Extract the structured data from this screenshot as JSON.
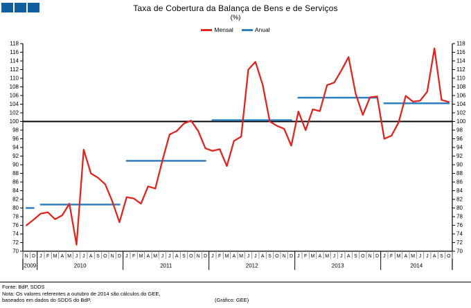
{
  "header": {
    "title": "Taxa de Cobertura da Balança de Bens e de Serviços",
    "subtitle": "(%)"
  },
  "decor": {
    "squares_count": 3,
    "squares_color": "#125F9F"
  },
  "legend": [
    {
      "label": "Mensal",
      "color": "#E02420"
    },
    {
      "label": "Anual",
      "color": "#2E7EBE"
    }
  ],
  "chart_data": {
    "type": "line",
    "title": "Taxa de Cobertura da Balança de Bens e de Serviços (%)",
    "xlabel": "",
    "ylabel": "%",
    "ylim": [
      70,
      118
    ],
    "grid": false,
    "legend_position": "top-center",
    "reference_line": 100,
    "yticks": [
      70,
      72,
      74,
      76,
      78,
      80,
      82,
      84,
      86,
      88,
      90,
      92,
      94,
      96,
      98,
      100,
      102,
      104,
      106,
      108,
      110,
      112,
      114,
      116,
      118
    ],
    "x_months": [
      "N",
      "D",
      "J",
      "F",
      "M",
      "A",
      "M",
      "J",
      "J",
      "A",
      "S",
      "O",
      "N",
      "D",
      "J",
      "F",
      "M",
      "A",
      "M",
      "J",
      "J",
      "A",
      "S",
      "O",
      "N",
      "D",
      "J",
      "F",
      "M",
      "A",
      "M",
      "J",
      "J",
      "A",
      "S",
      "O",
      "N",
      "D",
      "J",
      "F",
      "M",
      "A",
      "M",
      "J",
      "J",
      "A",
      "S",
      "O",
      "N",
      "D",
      "J",
      "F",
      "M",
      "A",
      "M",
      "J",
      "J",
      "A",
      "S",
      "O"
    ],
    "years": [
      {
        "label": "2009",
        "months": 2
      },
      {
        "label": "2010",
        "months": 12
      },
      {
        "label": "2011",
        "months": 12
      },
      {
        "label": "2012",
        "months": 12
      },
      {
        "label": "2013",
        "months": 12
      },
      {
        "label": "2014",
        "months": 10
      }
    ],
    "series": [
      {
        "name": "Mensal",
        "type": "monthly",
        "color": "#E02420",
        "values": [
          76.0,
          77.3,
          78.7,
          79.0,
          77.4,
          78.3,
          81.0,
          71.5,
          93.5,
          88.0,
          87.0,
          85.5,
          81.5,
          76.7,
          82.5,
          82.2,
          81.0,
          85.0,
          84.5,
          91.0,
          97.0,
          97.8,
          99.5,
          100.2,
          97.8,
          93.8,
          93.2,
          93.6,
          89.7,
          95.5,
          96.5,
          112.0,
          113.8,
          108.5,
          100.0,
          99.0,
          98.3,
          94.4,
          102.3,
          98.0,
          102.8,
          102.4,
          108.4,
          109.0,
          111.8,
          114.9,
          106.4,
          101.5,
          105.6,
          105.8,
          96.0,
          96.7,
          99.8,
          105.9,
          104.6,
          104.8,
          106.9,
          116.9,
          105.0,
          104.5
        ]
      },
      {
        "name": "Anual",
        "type": "annual-segments",
        "color": "#2E7EBE",
        "values": [
          {
            "year": "2009",
            "value": 80.0
          },
          {
            "year": "2010",
            "value": 80.8
          },
          {
            "year": "2011",
            "value": 90.9
          },
          {
            "year": "2012",
            "value": 100.3
          },
          {
            "year": "2013",
            "value": 105.5
          },
          {
            "year": "2014",
            "value": 104.2
          }
        ]
      }
    ]
  },
  "footer": {
    "fonte": "Fonte: BdP, SDDS",
    "nota_line1": "Nota: Os valores referentes a outubro de 2014 são cálculos do GEE,",
    "nota_line2": "baseados em dados do SDDS do BdP.",
    "credit": "(Gráfico: GEE)"
  }
}
